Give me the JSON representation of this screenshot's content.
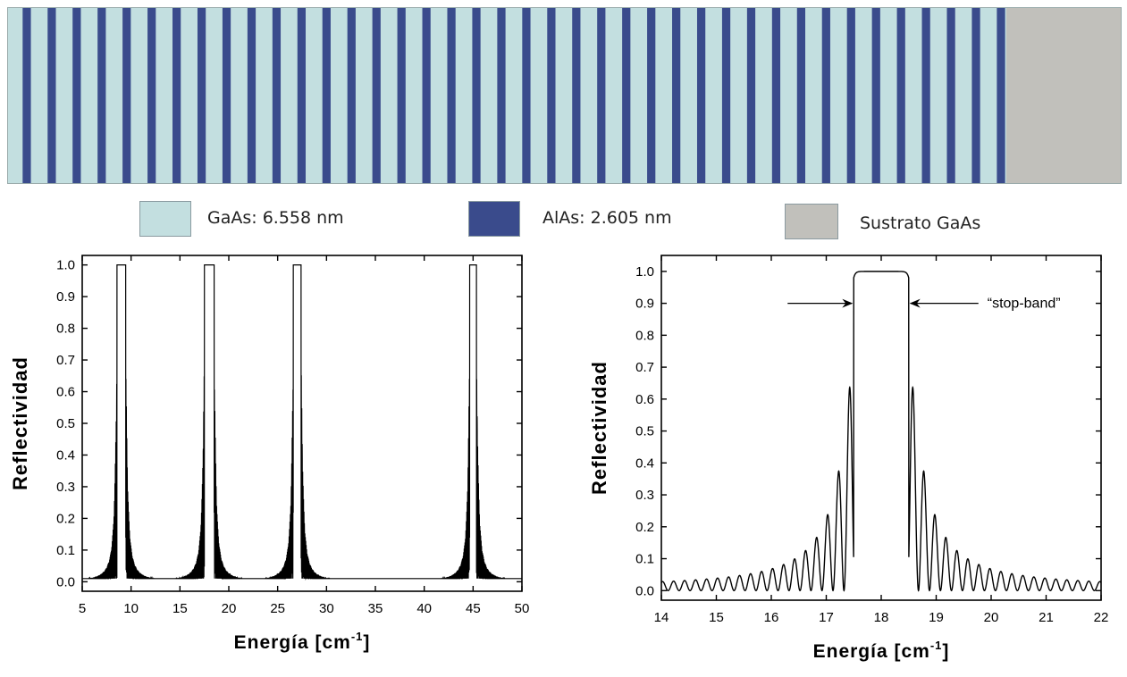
{
  "colors": {
    "gaas": "#c3dfe0",
    "alas": "#3a4b8c",
    "substrate": "#c1c0bb",
    "line": "#000000"
  },
  "structure": {
    "periods": 40
  },
  "legend": {
    "gaas_label": "GaAs: 6.558 nm",
    "alas_label": "AlAs: 2.605 nm",
    "substrate_label": "Sustrato GaAs"
  },
  "chart_data": [
    {
      "type": "line",
      "xlabel": "Energía [cm",
      "xlabel_sup": "-1",
      "xlabel_suffix": "]",
      "ylabel": "Reflectividad",
      "xlim": [
        5,
        50
      ],
      "ylim": [
        -0.03,
        1.03
      ],
      "xticks": [
        "5",
        "10",
        "15",
        "20",
        "25",
        "30",
        "35",
        "40",
        "45",
        "50"
      ],
      "yticks": [
        "0.0",
        "0.1",
        "0.2",
        "0.3",
        "0.4",
        "0.5",
        "0.6",
        "0.7",
        "0.8",
        "0.9",
        "1.0"
      ],
      "peaks": [
        {
          "center": 9.0,
          "width": 0.9,
          "reflectivity": 1.0
        },
        {
          "center": 18.0,
          "width": 1.0,
          "reflectivity": 1.0
        },
        {
          "center": 27.0,
          "width": 0.8,
          "reflectivity": 1.0
        },
        {
          "center": 45.0,
          "width": 0.7,
          "reflectivity": 1.0
        }
      ],
      "baseline": 0.01,
      "grid": false
    },
    {
      "type": "line",
      "xlabel": "Energía [cm",
      "xlabel_sup": "-1",
      "xlabel_suffix": "]",
      "ylabel": "Reflectividad",
      "xlim": [
        14,
        22
      ],
      "ylim": [
        -0.03,
        1.05
      ],
      "xticks": [
        "14",
        "15",
        "16",
        "17",
        "18",
        "19",
        "20",
        "21",
        "22"
      ],
      "yticks": [
        "0.0",
        "0.1",
        "0.2",
        "0.3",
        "0.4",
        "0.5",
        "0.6",
        "0.7",
        "0.8",
        "0.9",
        "1.0"
      ],
      "stop_band": [
        17.5,
        18.5
      ],
      "annotation": "“stop-band”",
      "grid": false
    }
  ]
}
